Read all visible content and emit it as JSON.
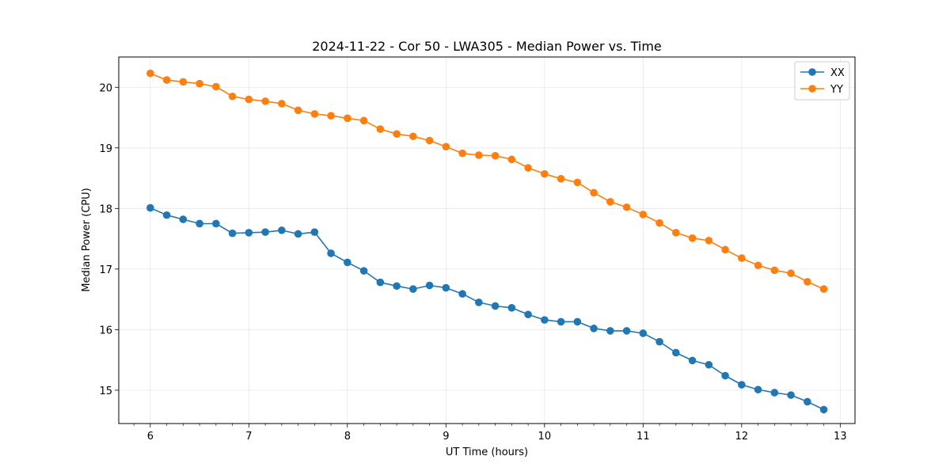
{
  "chart_data": {
    "type": "line",
    "title": "2024-11-22 - Cor 50 - LWA305 - Median Power vs. Time",
    "xlabel": "UT Time (hours)",
    "ylabel": "Median Power (CPU)",
    "xlim": [
      5.68,
      13.15
    ],
    "ylim": [
      14.45,
      20.5
    ],
    "xticks": [
      6,
      7,
      8,
      9,
      10,
      11,
      12,
      13
    ],
    "xtick_labels": [
      "6",
      "7",
      "8",
      "9",
      "10",
      "11",
      "12",
      "13"
    ],
    "yticks": [
      15,
      16,
      17,
      18,
      19,
      20
    ],
    "ytick_labels": [
      "15",
      "16",
      "17",
      "18",
      "19",
      "20"
    ],
    "grid": true,
    "legend_position": "top-right",
    "x": [
      6.0,
      6.1667,
      6.3333,
      6.5,
      6.6667,
      6.8333,
      7.0,
      7.1667,
      7.3333,
      7.5,
      7.6667,
      7.8333,
      8.0,
      8.1667,
      8.3333,
      8.5,
      8.6667,
      8.8333,
      9.0,
      9.1667,
      9.3333,
      9.5,
      9.6667,
      9.8333,
      10.0,
      10.1667,
      10.3333,
      10.5,
      10.6667,
      10.8333,
      11.0,
      11.1667,
      11.3333,
      11.5,
      11.6667,
      11.8333,
      12.0,
      12.1667,
      12.3333,
      12.5,
      12.6667,
      12.8333
    ],
    "series": [
      {
        "name": "XX",
        "color": "#1f77b4",
        "values": [
          18.01,
          17.89,
          17.82,
          17.75,
          17.75,
          17.59,
          17.6,
          17.61,
          17.64,
          17.58,
          17.61,
          17.26,
          17.11,
          16.97,
          16.78,
          16.72,
          16.67,
          16.73,
          16.69,
          16.59,
          16.45,
          16.39,
          16.36,
          16.25,
          16.16,
          16.13,
          16.13,
          16.02,
          15.98,
          15.98,
          15.94,
          15.8,
          15.62,
          15.49,
          15.42,
          15.24,
          15.09,
          15.01,
          14.96,
          14.92,
          14.81,
          14.68
        ]
      },
      {
        "name": "YY",
        "color": "#ff7f0e",
        "values": [
          20.23,
          20.12,
          20.09,
          20.06,
          20.01,
          19.85,
          19.8,
          19.77,
          19.73,
          19.62,
          19.56,
          19.53,
          19.49,
          19.45,
          19.31,
          19.23,
          19.19,
          19.12,
          19.02,
          18.91,
          18.88,
          18.87,
          18.81,
          18.67,
          18.57,
          18.49,
          18.43,
          18.26,
          18.11,
          18.02,
          17.9,
          17.76,
          17.6,
          17.51,
          17.47,
          17.32,
          17.18,
          17.06,
          16.98,
          16.93,
          16.79,
          16.67
        ]
      }
    ]
  }
}
